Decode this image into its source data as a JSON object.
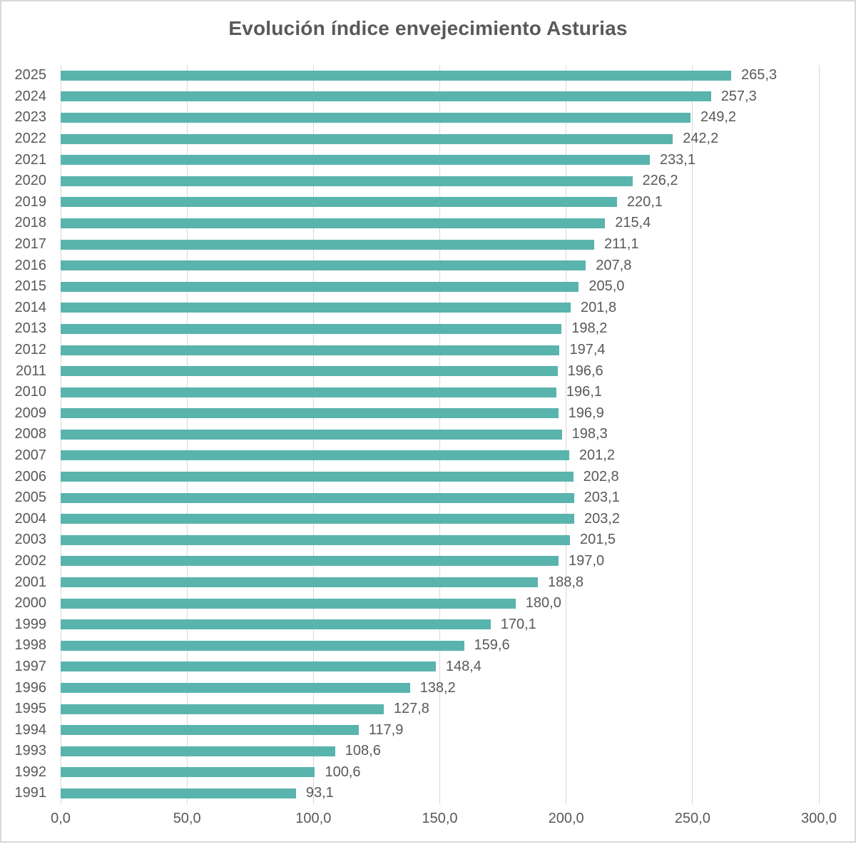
{
  "title": "Evolución índice envejecimiento Asturias",
  "colors": {
    "bar": "#5ab4ae",
    "grid": "#d9d9d9",
    "text": "#595959",
    "frame": "#d9d9d9",
    "background": "#ffffff"
  },
  "chart_data": {
    "type": "bar",
    "orientation": "horizontal",
    "title": "Evolución índice envejecimiento Asturias",
    "categories": [
      "2025",
      "2024",
      "2023",
      "2022",
      "2021",
      "2020",
      "2019",
      "2018",
      "2017",
      "2016",
      "2015",
      "2014",
      "2013",
      "2012",
      "2011",
      "2010",
      "2009",
      "2008",
      "2007",
      "2006",
      "2005",
      "2004",
      "2003",
      "2002",
      "2001",
      "2000",
      "1999",
      "1998",
      "1997",
      "1996",
      "1995",
      "1994",
      "1993",
      "1992",
      "1991"
    ],
    "values": [
      265.3,
      257.3,
      249.2,
      242.2,
      233.1,
      226.2,
      220.1,
      215.4,
      211.1,
      207.8,
      205.0,
      201.8,
      198.2,
      197.4,
      196.6,
      196.1,
      196.9,
      198.3,
      201.2,
      202.8,
      203.1,
      203.2,
      201.5,
      197.0,
      188.8,
      180.0,
      170.1,
      159.6,
      148.4,
      138.2,
      127.8,
      117.9,
      108.6,
      100.6,
      93.1
    ],
    "value_labels": [
      "265,3",
      "257,3",
      "249,2",
      "242,2",
      "233,1",
      "226,2",
      "220,1",
      "215,4",
      "211,1",
      "207,8",
      "205,0",
      "201,8",
      "198,2",
      "197,4",
      "196,6",
      "196,1",
      "196,9",
      "198,3",
      "201,2",
      "202,8",
      "203,1",
      "203,2",
      "201,5",
      "197,0",
      "188,8",
      "180,0",
      "170,1",
      "159,6",
      "148,4",
      "138,2",
      "127,8",
      "117,9",
      "108,6",
      "100,6",
      "93,1"
    ],
    "xlim": [
      0,
      300
    ],
    "x_tick_values": [
      0,
      50,
      100,
      150,
      200,
      250,
      300
    ],
    "x_tick_labels": [
      "0,0",
      "50,0",
      "100,0",
      "150,0",
      "200,0",
      "250,0",
      "300,0"
    ],
    "grid": true,
    "legend": false,
    "ylabel": "",
    "xlabel": ""
  }
}
